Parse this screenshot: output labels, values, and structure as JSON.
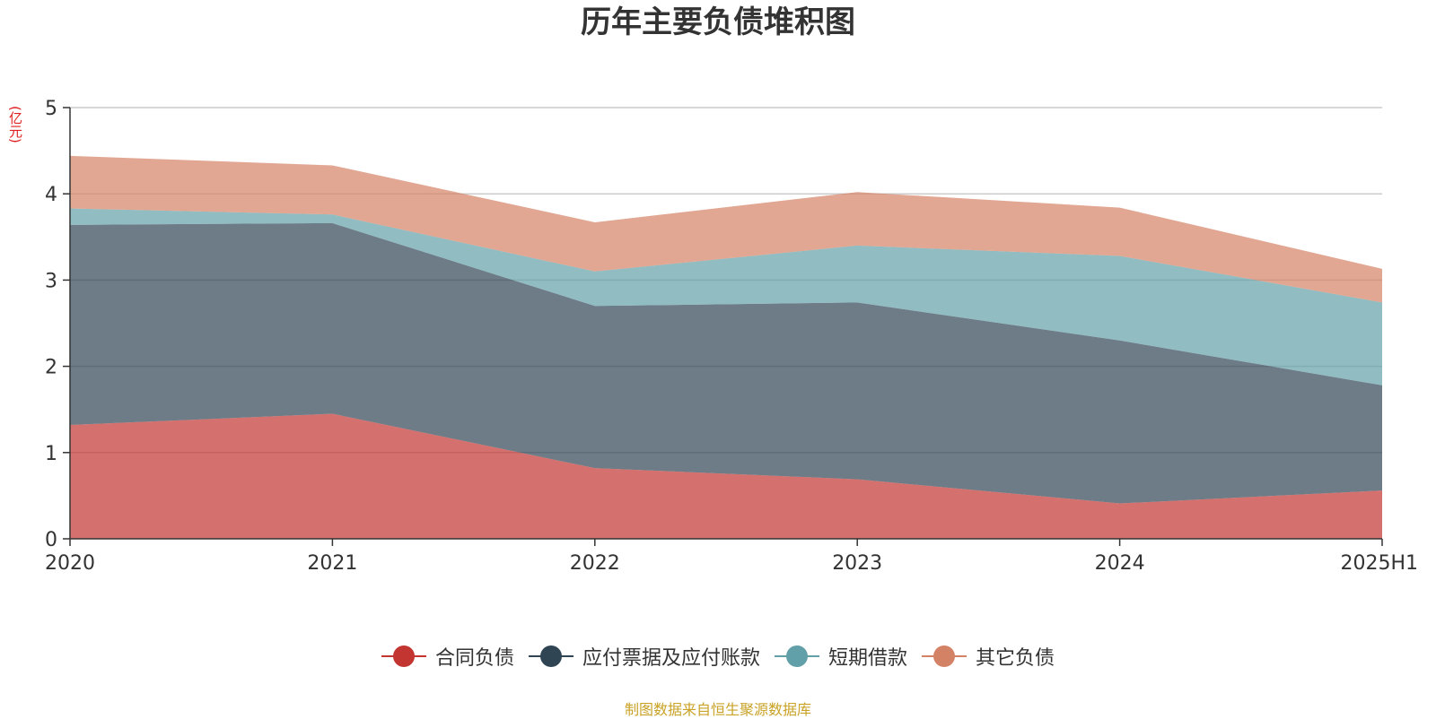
{
  "chart_data": {
    "type": "area",
    "stacked": true,
    "title": "历年主要负债堆积图",
    "unit_label": "(亿元)",
    "categories": [
      "2020",
      "2021",
      "2022",
      "2023",
      "2024",
      "2025H1"
    ],
    "ylim": [
      0,
      5
    ],
    "yticks": [
      "0",
      "1",
      "2",
      "3",
      "4",
      "5"
    ],
    "grid": true,
    "legend_position": "bottom",
    "series": [
      {
        "name": "合同负债",
        "color": "#c23531",
        "values": [
          1.32,
          1.45,
          0.82,
          0.69,
          0.41,
          0.56
        ]
      },
      {
        "name": "应付票据及应付账款",
        "color": "#2f4554",
        "values": [
          2.32,
          2.21,
          1.88,
          2.05,
          1.89,
          1.22
        ]
      },
      {
        "name": "短期借款",
        "color": "#61a0a8",
        "values": [
          0.19,
          0.1,
          0.4,
          0.66,
          0.98,
          0.96
        ]
      },
      {
        "name": "其它负债",
        "color": "#d48265",
        "values": [
          0.61,
          0.57,
          0.57,
          0.62,
          0.56,
          0.39
        ]
      }
    ],
    "source_note": "制图数据来自恒生聚源数据库"
  }
}
